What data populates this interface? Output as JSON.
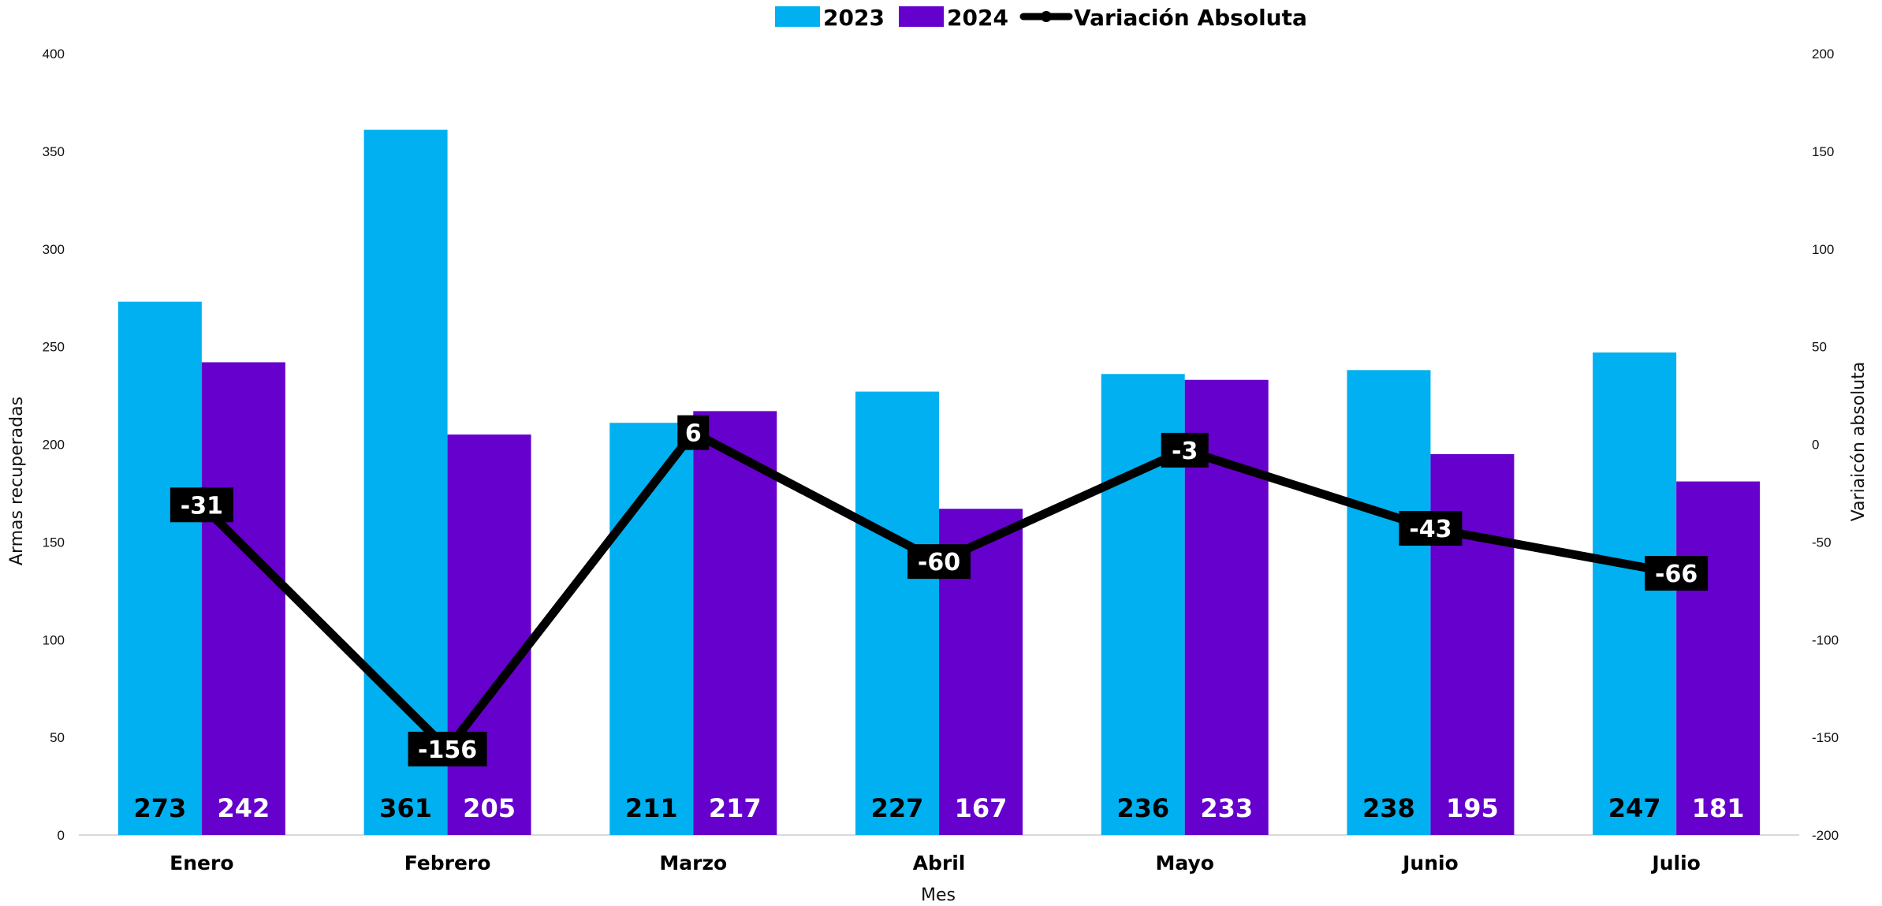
{
  "chart_data": {
    "type": "bar",
    "title": "",
    "xlabel": "Mes",
    "ylabel": "Armas recuperadas",
    "y2label": "Variaicón absoluta",
    "ylim": [
      0,
      400
    ],
    "y2lim": [
      -200,
      200
    ],
    "yticks": [
      0,
      50,
      100,
      150,
      200,
      250,
      300,
      350,
      400
    ],
    "y2ticks": [
      -200,
      -150,
      -100,
      -50,
      0,
      50,
      100,
      150,
      200
    ],
    "categories": [
      "Enero",
      "Febrero",
      "Marzo",
      "Abril",
      "Mayo",
      "Junio",
      "Julio"
    ],
    "series": [
      {
        "name": "2023",
        "type": "bar",
        "axis": "left",
        "color": "#00B0F0",
        "label_color": "#000000",
        "values": [
          273,
          361,
          211,
          227,
          236,
          238,
          247
        ]
      },
      {
        "name": "2024",
        "type": "bar",
        "axis": "left",
        "color": "#6600CC",
        "label_color": "#FFFFFF",
        "values": [
          242,
          205,
          217,
          167,
          233,
          195,
          181
        ]
      },
      {
        "name": "Variación Absoluta",
        "type": "line",
        "axis": "right",
        "color": "#000000",
        "values": [
          -31,
          -156,
          6,
          -60,
          -3,
          -43,
          -66
        ]
      }
    ],
    "legend_position": "top-center",
    "grid": false
  }
}
